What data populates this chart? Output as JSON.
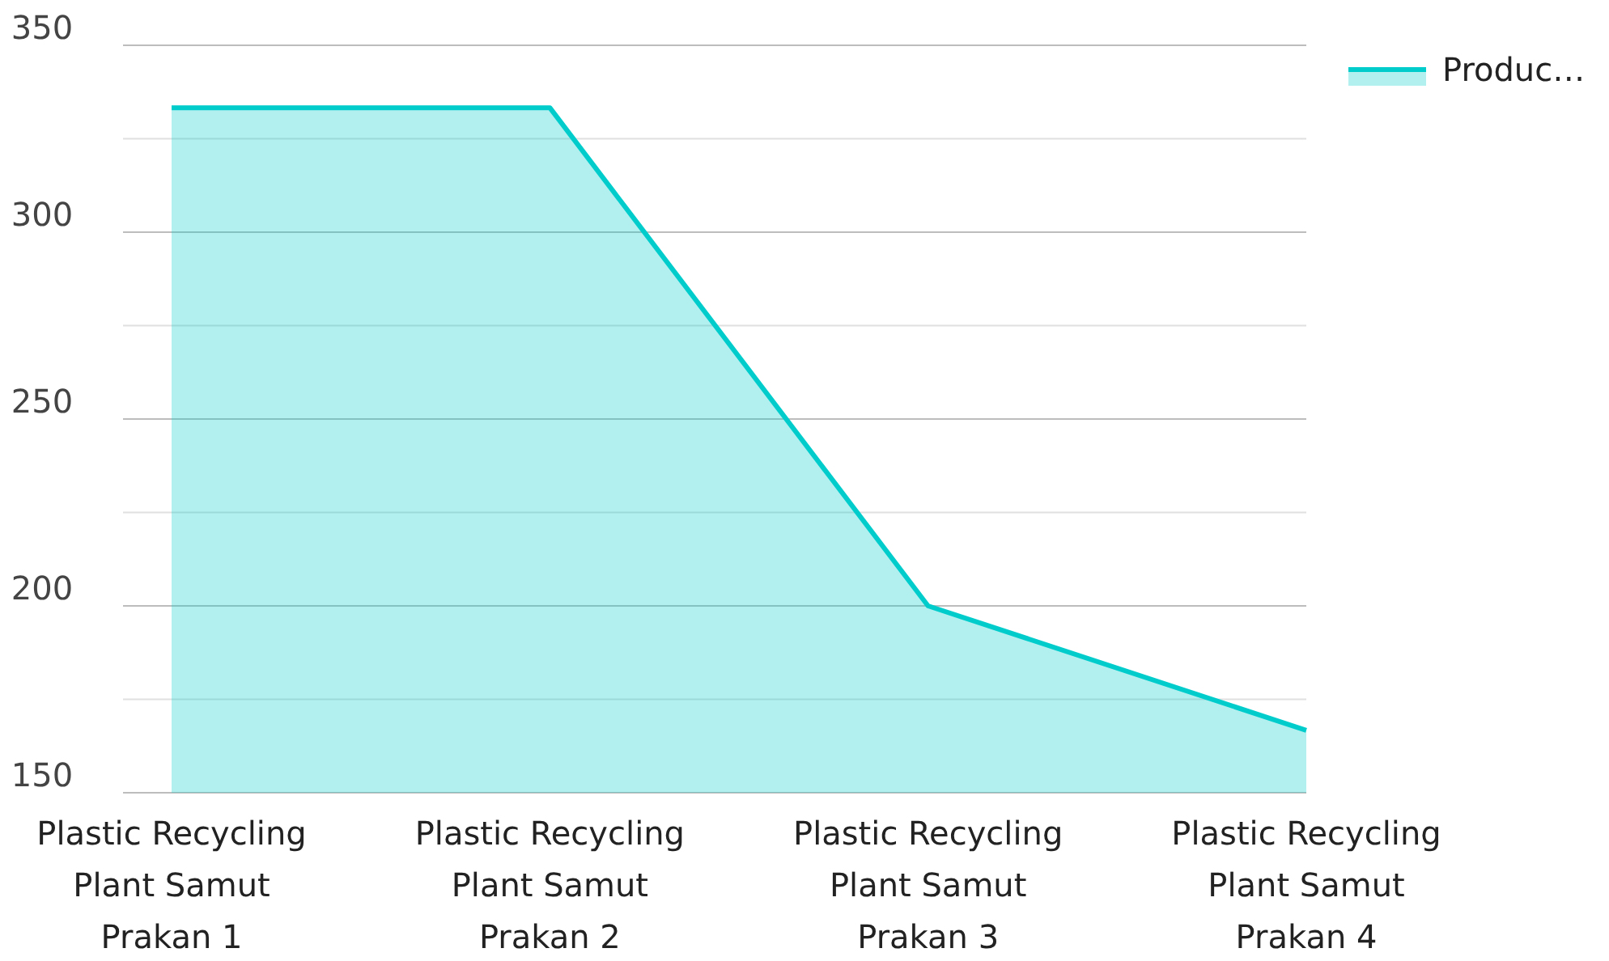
{
  "chart_data": {
    "type": "area",
    "categories": [
      "Plastic Recycling Plant Samut Prakan 1",
      "Plastic Recycling Plant Samut Prakan 2",
      "Plastic Recycling Plant Samut Prakan 3",
      "Plastic Recycling Plant Samut Prakan 4"
    ],
    "series": [
      {
        "name": "Produc…",
        "color": "#00cccc",
        "values": [
          333.3,
          333.3,
          200,
          166.7
        ]
      }
    ],
    "ylim": [
      150,
      350
    ],
    "yticks": [
      150,
      {
        "value": 175,
        "label": null
      },
      200,
      {
        "value": 225,
        "label": null
      },
      250,
      {
        "value": 275,
        "label": null
      },
      300,
      {
        "value": 325,
        "label": null
      },
      350
    ],
    "grid": true,
    "legend": "top right"
  }
}
